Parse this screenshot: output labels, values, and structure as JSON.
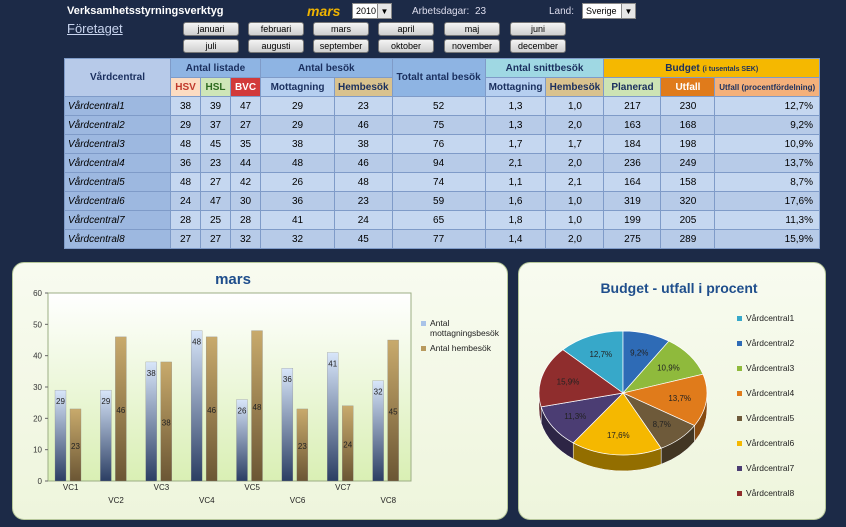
{
  "header": {
    "title": "Verksamhetsstyrningsverktyg",
    "company": "Företaget",
    "selected_month": "mars",
    "year": "2010",
    "workdays_label": "Arbetsdagar:",
    "workdays_value": "23",
    "country_label": "Land:",
    "country_value": "Sverige"
  },
  "months": [
    "januari",
    "februari",
    "mars",
    "april",
    "maj",
    "juni",
    "juli",
    "augusti",
    "september",
    "oktober",
    "november",
    "december"
  ],
  "table": {
    "headers": {
      "vardcentral": "Vårdcentral",
      "antal_listade": "Antal listade",
      "hsv": "HSV",
      "hsl": "HSL",
      "bvc": "BVC",
      "antal_besok": "Antal besök",
      "mottagning": "Mottagning",
      "hembesok": "Hembesök",
      "totalt": "Totalt antal besök",
      "antal_snitt": "Antal snittbesök",
      "snitt_mott": "Mottagning",
      "snitt_hemb": "Hembesök",
      "budget": "Budget",
      "budget_sub": "(i tusentals SEK)",
      "planerad": "Planerad",
      "utfall": "Utfall",
      "utfall_proc": "Utfall (procentfördelning)"
    },
    "rows": [
      {
        "name": "Vårdcentral1",
        "hsv": "38",
        "hsl": "39",
        "bvc": "47",
        "mott": "29",
        "hemb": "23",
        "tot": "52",
        "smott": "1,3",
        "shemb": "1,0",
        "plan": "217",
        "utf": "230",
        "proc": "12,7%"
      },
      {
        "name": "Vårdcentral2",
        "hsv": "29",
        "hsl": "37",
        "bvc": "27",
        "mott": "29",
        "hemb": "46",
        "tot": "75",
        "smott": "1,3",
        "shemb": "2,0",
        "plan": "163",
        "utf": "168",
        "proc": "9,2%"
      },
      {
        "name": "Vårdcentral3",
        "hsv": "48",
        "hsl": "45",
        "bvc": "35",
        "mott": "38",
        "hemb": "38",
        "tot": "76",
        "smott": "1,7",
        "shemb": "1,7",
        "plan": "184",
        "utf": "198",
        "proc": "10,9%"
      },
      {
        "name": "Vårdcentral4",
        "hsv": "36",
        "hsl": "23",
        "bvc": "44",
        "mott": "48",
        "hemb": "46",
        "tot": "94",
        "smott": "2,1",
        "shemb": "2,0",
        "plan": "236",
        "utf": "249",
        "proc": "13,7%"
      },
      {
        "name": "Vårdcentral5",
        "hsv": "48",
        "hsl": "27",
        "bvc": "42",
        "mott": "26",
        "hemb": "48",
        "tot": "74",
        "smott": "1,1",
        "shemb": "2,1",
        "plan": "164",
        "utf": "158",
        "proc": "8,7%"
      },
      {
        "name": "Vårdcentral6",
        "hsv": "24",
        "hsl": "47",
        "bvc": "30",
        "mott": "36",
        "hemb": "23",
        "tot": "59",
        "smott": "1,6",
        "shemb": "1,0",
        "plan": "319",
        "utf": "320",
        "proc": "17,6%"
      },
      {
        "name": "Vårdcentral7",
        "hsv": "28",
        "hsl": "25",
        "bvc": "28",
        "mott": "41",
        "hemb": "24",
        "tot": "65",
        "smott": "1,8",
        "shemb": "1,0",
        "plan": "199",
        "utf": "205",
        "proc": "11,3%"
      },
      {
        "name": "Vårdcentral8",
        "hsv": "27",
        "hsl": "27",
        "bvc": "32",
        "mott": "32",
        "hemb": "45",
        "tot": "77",
        "smott": "1,4",
        "shemb": "2,0",
        "plan": "275",
        "utf": "289",
        "proc": "15,9%"
      }
    ]
  },
  "chart_data": [
    {
      "type": "bar",
      "title": "mars",
      "categories": [
        "VC1",
        "VC2",
        "VC3",
        "VC4",
        "VC5",
        "VC6",
        "VC7",
        "VC8"
      ],
      "series": [
        {
          "name": "Antal mottagningsbesök",
          "values": [
            29,
            29,
            38,
            48,
            26,
            36,
            41,
            32
          ],
          "color": "#a9c3e8"
        },
        {
          "name": "Antal hembesök",
          "values": [
            23,
            46,
            38,
            46,
            48,
            23,
            24,
            45
          ],
          "color": "#b89a5e"
        }
      ],
      "ylim": [
        0,
        60
      ],
      "yticks": [
        "0",
        "10",
        "20",
        "30",
        "40",
        "50",
        "60"
      ],
      "legend": "right",
      "grid": false
    },
    {
      "type": "pie",
      "title": "Budget - utfall i procent",
      "labels": [
        "Vårdcentral1",
        "Vårdcentral2",
        "Vårdcentral3",
        "Vårdcentral4",
        "Vårdcentral5",
        "Vårdcentral6",
        "Vårdcentral7",
        "Vårdcentral8"
      ],
      "values": [
        12.7,
        9.2,
        10.9,
        13.7,
        8.7,
        17.6,
        11.3,
        15.9
      ],
      "value_labels": [
        "12,7%",
        "9,2%",
        "10,9%",
        "13,7%",
        "8,7%",
        "17,6%",
        "11,3%",
        "15,9%"
      ],
      "colors": [
        "#37a8c9",
        "#2e6bb6",
        "#8fba3c",
        "#e07b1b",
        "#6e5a3a",
        "#f5b800",
        "#4b3d73",
        "#8f2d2d"
      ],
      "legend": "right"
    }
  ]
}
